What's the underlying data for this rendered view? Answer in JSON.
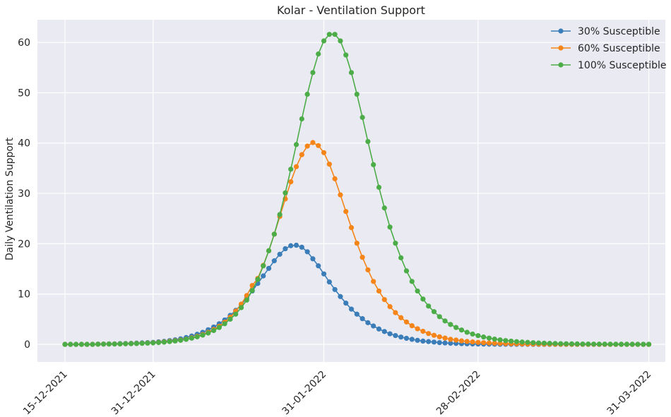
{
  "chart_data": {
    "type": "line",
    "title": "Kolar - Ventilation Support",
    "xlabel": "",
    "ylabel": "Daily Ventilation Support",
    "x_start": "2021-12-15",
    "x_end": "2022-03-31",
    "xlim": [
      "2021-12-10",
      "2022-04-03"
    ],
    "ylim": [
      -3.5,
      64.5
    ],
    "x_ticks": [
      {
        "date": "2021-12-15",
        "label": "15-12-2021"
      },
      {
        "date": "2021-12-31",
        "label": "31-12-2021"
      },
      {
        "date": "2022-01-31",
        "label": "31-01-2022"
      },
      {
        "date": "2022-02-28",
        "label": "28-02-2022"
      },
      {
        "date": "2022-03-31",
        "label": "31-03-2022"
      }
    ],
    "y_ticks": [
      0,
      10,
      20,
      30,
      40,
      50,
      60
    ],
    "grid": true,
    "background": "#eaeaf2",
    "legend_position": "top-right",
    "series": [
      {
        "name": "30% Susceptible",
        "color": "#3a7db8",
        "values": [
          0,
          0,
          0,
          0,
          0,
          0,
          0.05,
          0.07,
          0.1,
          0.1,
          0.15,
          0.17,
          0.2,
          0.25,
          0.3,
          0.35,
          0.4,
          0.5,
          0.6,
          0.75,
          0.9,
          1.1,
          1.35,
          1.65,
          2.0,
          2.4,
          2.9,
          3.45,
          4.1,
          4.85,
          5.75,
          6.75,
          7.9,
          9.2,
          10.6,
          12.1,
          13.6,
          15.1,
          16.6,
          17.9,
          19.0,
          19.6,
          19.7,
          19.3,
          18.4,
          17.0,
          15.6,
          14.0,
          12.4,
          10.9,
          9.5,
          8.2,
          7.0,
          6.0,
          5.1,
          4.3,
          3.65,
          3.05,
          2.55,
          2.1,
          1.75,
          1.45,
          1.2,
          1.0,
          0.8,
          0.65,
          0.55,
          0.45,
          0.35,
          0.28,
          0.22,
          0.18,
          0.14,
          0.1,
          0.08,
          0.06,
          0.05,
          0.04,
          0.03,
          0.02,
          0.02,
          0.01,
          0.01,
          0.01,
          0.01,
          0,
          0,
          0,
          0,
          0,
          0,
          0,
          0,
          0,
          0,
          0,
          0,
          0,
          0,
          0,
          0,
          0,
          0,
          0,
          0,
          0,
          0
        ]
      },
      {
        "name": "60% Susceptible",
        "color": "#f58518",
        "values": [
          0,
          0,
          0,
          0,
          0,
          0,
          0.03,
          0.05,
          0.07,
          0.08,
          0.1,
          0.12,
          0.15,
          0.18,
          0.22,
          0.27,
          0.32,
          0.4,
          0.5,
          0.6,
          0.72,
          0.87,
          1.05,
          1.3,
          1.6,
          1.95,
          2.4,
          2.95,
          3.6,
          4.4,
          5.4,
          6.6,
          8.0,
          9.7,
          11.7,
          13.1,
          15.7,
          18.6,
          21.9,
          25.4,
          28.9,
          32.3,
          35.3,
          37.7,
          39.4,
          40.1,
          39.5,
          38.1,
          35.8,
          32.9,
          29.7,
          26.4,
          23.2,
          20.1,
          17.3,
          14.8,
          12.5,
          10.6,
          8.9,
          7.5,
          6.3,
          5.3,
          4.45,
          3.7,
          3.1,
          2.6,
          2.15,
          1.8,
          1.5,
          1.25,
          1.0,
          0.85,
          0.7,
          0.58,
          0.48,
          0.4,
          0.33,
          0.27,
          0.22,
          0.18,
          0.15,
          0.12,
          0.1,
          0.08,
          0.06,
          0.05,
          0.04,
          0.03,
          0.03,
          0.02,
          0.02,
          0.01,
          0.01,
          0.01,
          0.01,
          0,
          0,
          0,
          0,
          0,
          0,
          0,
          0,
          0,
          0,
          0,
          0
        ]
      },
      {
        "name": "100% Susceptible",
        "color": "#4cad48",
        "values": [
          0,
          0,
          0,
          0,
          0,
          0,
          0.03,
          0.04,
          0.06,
          0.07,
          0.09,
          0.11,
          0.13,
          0.16,
          0.2,
          0.24,
          0.29,
          0.36,
          0.44,
          0.54,
          0.66,
          0.81,
          1.0,
          1.22,
          1.5,
          1.84,
          2.25,
          2.75,
          3.35,
          4.1,
          5.0,
          6.0,
          7.3,
          8.8,
          10.7,
          12.9,
          15.6,
          18.6,
          21.9,
          25.8,
          30.1,
          34.8,
          39.7,
          44.8,
          49.7,
          54.0,
          57.7,
          60.3,
          61.6,
          61.6,
          60.3,
          57.5,
          54.0,
          49.7,
          45.1,
          40.3,
          35.7,
          31.2,
          27.1,
          23.3,
          20.1,
          17.2,
          14.6,
          12.5,
          10.6,
          9.0,
          7.6,
          6.5,
          5.5,
          4.65,
          3.95,
          3.35,
          2.85,
          2.4,
          2.05,
          1.73,
          1.46,
          1.24,
          1.05,
          0.89,
          0.75,
          0.64,
          0.54,
          0.46,
          0.39,
          0.33,
          0.28,
          0.24,
          0.2,
          0.17,
          0.14,
          0.12,
          0.1,
          0.09,
          0.07,
          0.06,
          0.05,
          0.04,
          0.04,
          0.03,
          0.03,
          0.02,
          0.02,
          0.02,
          0.01,
          0.01,
          0.01
        ]
      }
    ]
  }
}
